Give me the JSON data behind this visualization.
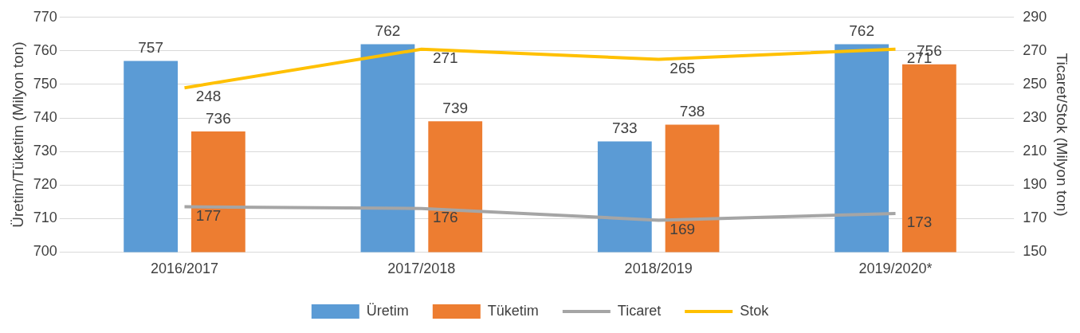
{
  "chart_data": {
    "type": "bar",
    "categories": [
      "2016/2017",
      "2017/2018",
      "2018/2019",
      "2019/2020*"
    ],
    "ylabel": "Üretim/Tüketim (Milyon ton)",
    "y2label": "Ticaret/Stok (Milyon ton)",
    "ylim": [
      700,
      770
    ],
    "yticks": [
      700,
      710,
      720,
      730,
      740,
      750,
      760,
      770
    ],
    "y2lim": [
      150,
      290
    ],
    "y2ticks": [
      150,
      170,
      190,
      210,
      230,
      250,
      270,
      290
    ],
    "series": [
      {
        "name": "Üretim",
        "color": "#5b9bd5",
        "values": [
          757,
          762,
          733,
          762
        ]
      },
      {
        "name": "Tüketim",
        "color": "#ed7d31",
        "values": [
          736,
          739,
          738,
          756
        ]
      },
      {
        "name": "Ticaret",
        "type": "line",
        "axis": "y2",
        "color": "#a5a5a5",
        "values": [
          177,
          176,
          169,
          173
        ]
      },
      {
        "name": "Stok",
        "type": "line",
        "axis": "y2",
        "color": "#ffc000",
        "values": [
          248,
          271,
          265,
          271
        ]
      }
    ],
    "grid": "y",
    "legend": "bottom",
    "data_labels": true,
    "marker": "none",
    "line_style": "solid"
  }
}
